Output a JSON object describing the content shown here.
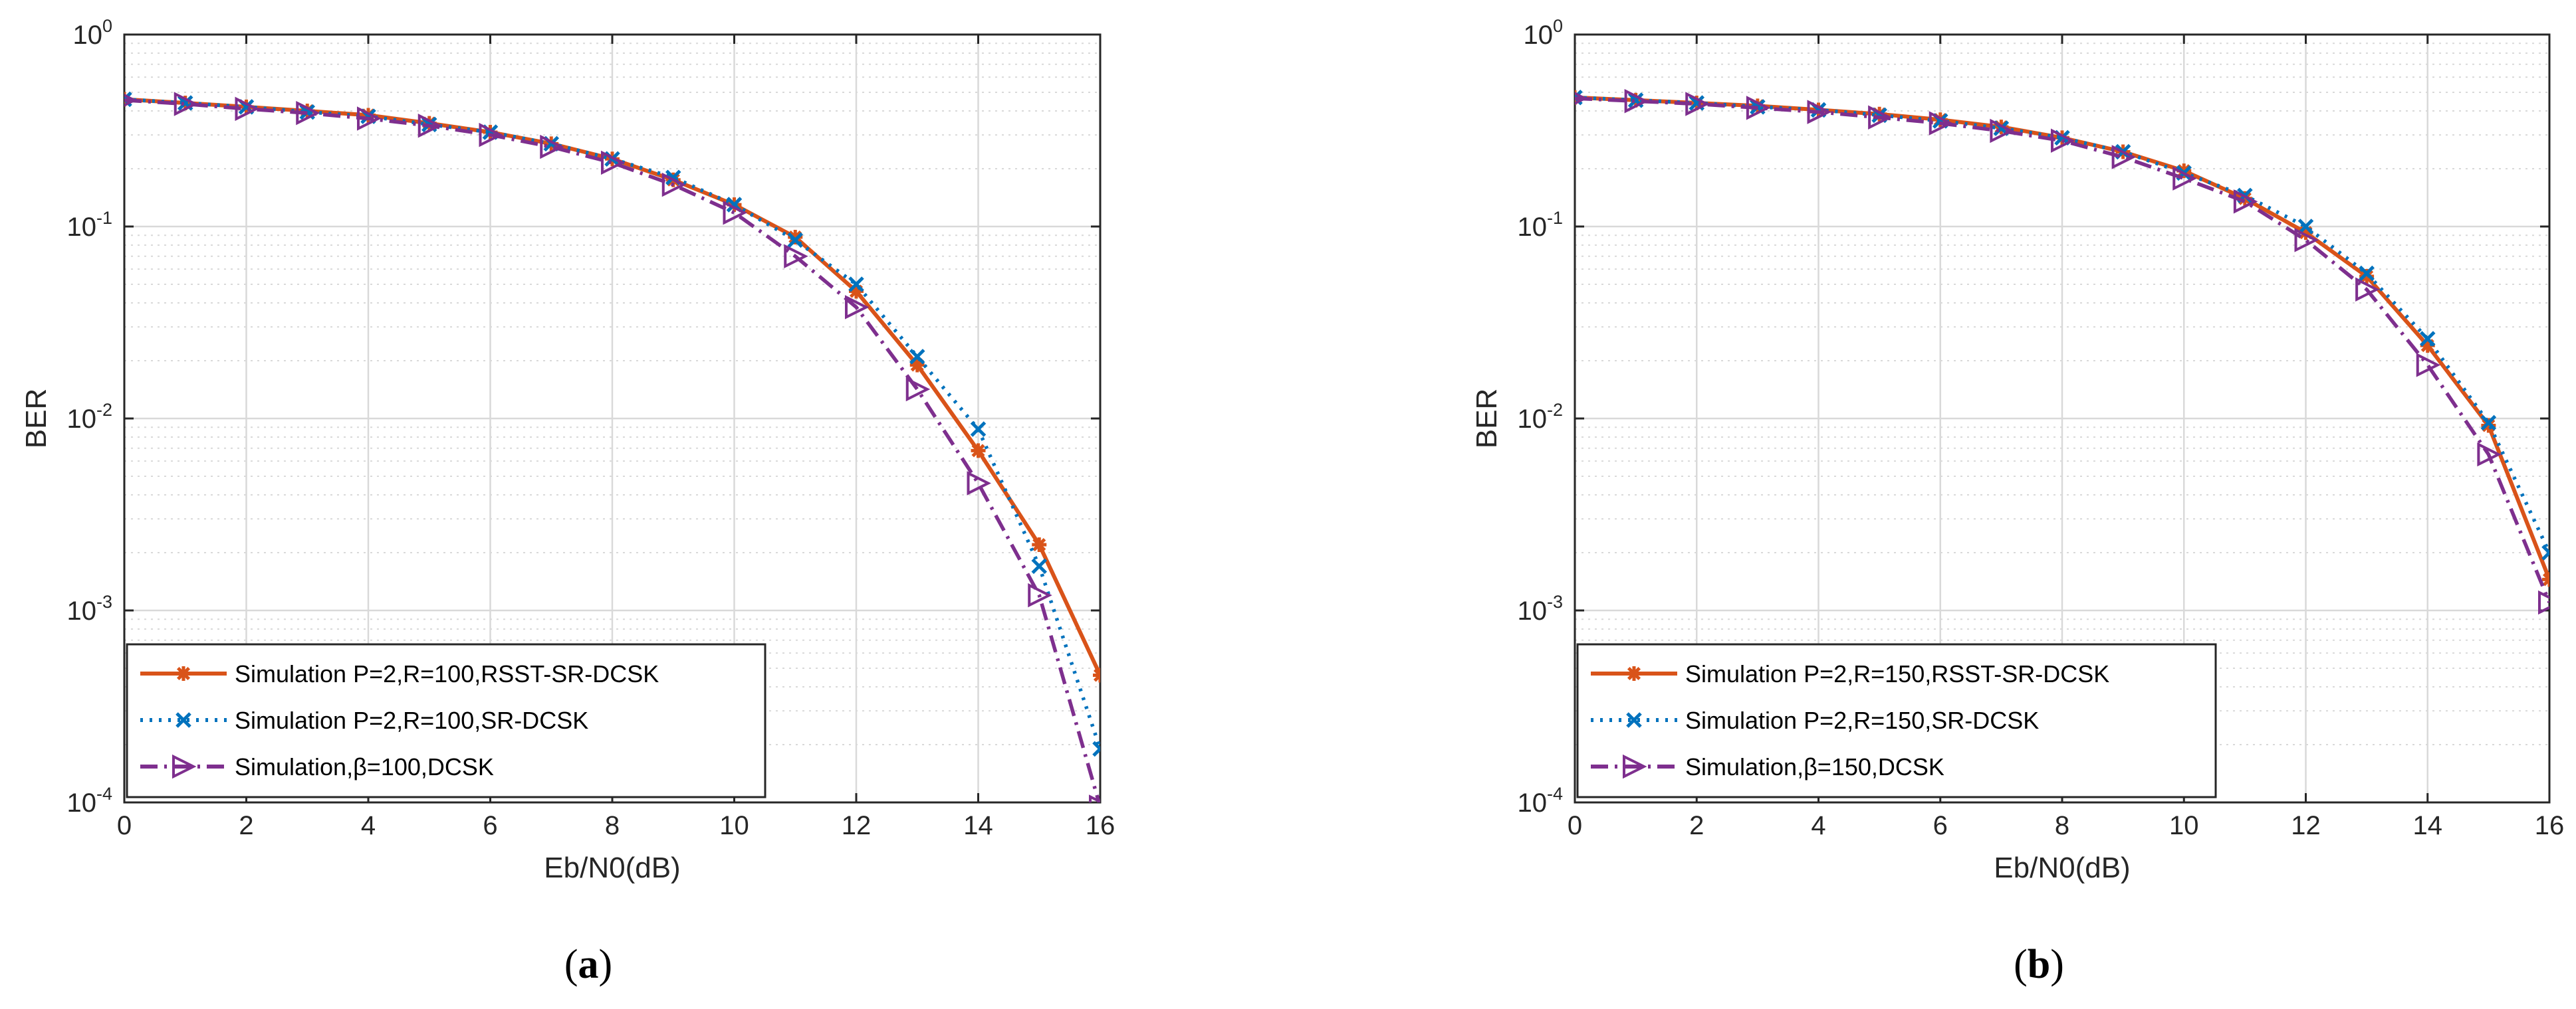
{
  "colors": {
    "rsst": "#D95319",
    "srdcsk": "#0072BD",
    "dcsk": "#7E2F8E",
    "grid": "#d9d9d9",
    "axis": "#262626"
  },
  "chart_data": [
    {
      "type": "line",
      "panel": "a",
      "caption": {
        "open": "(",
        "letter": "a",
        "close": ")"
      },
      "xlabel": "Eb/N0(dB)",
      "ylabel": "BER",
      "yscale": "log",
      "xlim": [
        0,
        16
      ],
      "ylim": [
        0.0001,
        1
      ],
      "xticks": [
        0,
        2,
        4,
        6,
        8,
        10,
        12,
        14,
        16
      ],
      "yticks": [
        {
          "base": "10",
          "exp": "-4"
        },
        {
          "base": "10",
          "exp": "-3"
        },
        {
          "base": "10",
          "exp": "-2"
        },
        {
          "base": "10",
          "exp": "-1"
        },
        {
          "base": "10",
          "exp": "0"
        }
      ],
      "grid": true,
      "legend_position": "bottom-left",
      "x": [
        0,
        1,
        2,
        3,
        4,
        5,
        6,
        7,
        8,
        9,
        10,
        11,
        12,
        13,
        14,
        15,
        16
      ],
      "series": [
        {
          "name": "Simulation P=2,R=100,RSST-SR-DCSK",
          "key": "rsst",
          "marker": "asterisk",
          "dash": "solid",
          "values": [
            0.46,
            0.44,
            0.42,
            0.4,
            0.38,
            0.345,
            0.31,
            0.27,
            0.225,
            0.175,
            0.13,
            0.088,
            0.046,
            0.019,
            0.0068,
            0.0022,
            0.00046
          ]
        },
        {
          "name": "Simulation P=2,R=100,SR-DCSK",
          "key": "srdcsk",
          "marker": "x",
          "dash": "dotted",
          "values": [
            0.46,
            0.44,
            0.42,
            0.395,
            0.375,
            0.34,
            0.31,
            0.27,
            0.225,
            0.18,
            0.13,
            0.085,
            0.05,
            0.021,
            0.0088,
            0.0017,
            0.00019
          ]
        },
        {
          "name": "Simulation,β=100,DCSK",
          "key": "dcsk",
          "marker": "triangle-right",
          "dash": "dashdot",
          "values": [
            0.455,
            0.435,
            0.41,
            0.39,
            0.365,
            0.335,
            0.3,
            0.26,
            0.215,
            0.165,
            0.118,
            0.07,
            0.038,
            0.0142,
            0.0046,
            0.0012,
            9.5e-05
          ]
        }
      ]
    },
    {
      "type": "line",
      "panel": "b",
      "caption": {
        "open": "(",
        "letter": "b",
        "close": ")"
      },
      "xlabel": "Eb/N0(dB)",
      "ylabel": "BER",
      "yscale": "log",
      "xlim": [
        0,
        16
      ],
      "ylim": [
        0.0001,
        1
      ],
      "xticks": [
        0,
        2,
        4,
        6,
        8,
        10,
        12,
        14,
        16
      ],
      "yticks": [
        {
          "base": "10",
          "exp": "-4"
        },
        {
          "base": "10",
          "exp": "-3"
        },
        {
          "base": "10",
          "exp": "-2"
        },
        {
          "base": "10",
          "exp": "-1"
        },
        {
          "base": "10",
          "exp": "0"
        }
      ],
      "grid": true,
      "legend_position": "bottom-left",
      "x": [
        0,
        1,
        2,
        3,
        4,
        5,
        6,
        7,
        8,
        9,
        10,
        11,
        12,
        13,
        14,
        15,
        16
      ],
      "series": [
        {
          "name": "Simulation P=2,R=150,RSST-SR-DCSK",
          "key": "rsst",
          "marker": "asterisk",
          "dash": "solid",
          "values": [
            0.47,
            0.455,
            0.44,
            0.425,
            0.405,
            0.385,
            0.36,
            0.33,
            0.29,
            0.245,
            0.195,
            0.14,
            0.093,
            0.055,
            0.024,
            0.0092,
            0.00145
          ]
        },
        {
          "name": "Simulation P=2,R=150,SR-DCSK",
          "key": "srdcsk",
          "marker": "x",
          "dash": "dotted",
          "values": [
            0.47,
            0.455,
            0.44,
            0.42,
            0.405,
            0.38,
            0.355,
            0.325,
            0.29,
            0.245,
            0.19,
            0.145,
            0.1,
            0.057,
            0.026,
            0.0095,
            0.002
          ]
        },
        {
          "name": "Simulation,β=150,DCSK",
          "key": "dcsk",
          "marker": "triangle-right",
          "dash": "dashdot",
          "values": [
            0.465,
            0.45,
            0.435,
            0.415,
            0.395,
            0.37,
            0.345,
            0.315,
            0.28,
            0.23,
            0.178,
            0.135,
            0.085,
            0.047,
            0.019,
            0.0065,
            0.0011
          ]
        }
      ]
    }
  ]
}
